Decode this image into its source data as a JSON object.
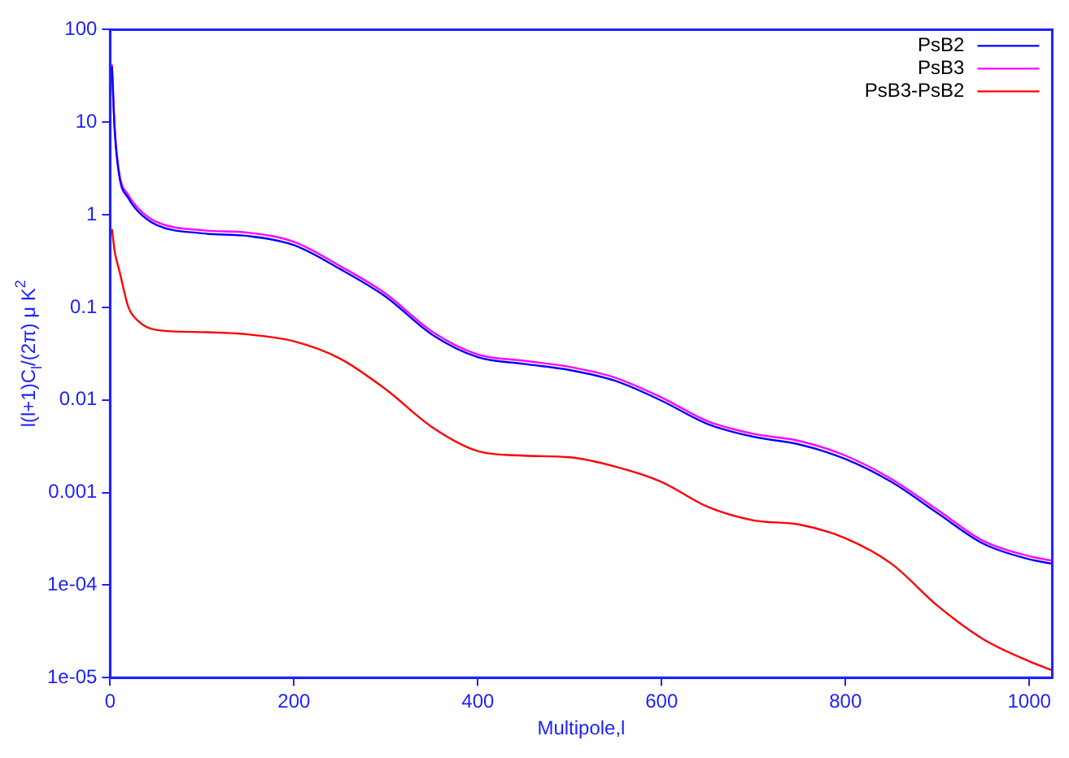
{
  "chart_data": {
    "type": "line",
    "xlabel": "Multipole,l",
    "ylabel": "l(l+1)C$_{l}$/(2π) μ K$^{2}$",
    "x": [
      2,
      5,
      10,
      20,
      30,
      50,
      100,
      150,
      200,
      250,
      300,
      350,
      400,
      450,
      500,
      550,
      600,
      650,
      700,
      750,
      800,
      850,
      900,
      950,
      1000,
      1025
    ],
    "series": [
      {
        "name": "PsB2",
        "color": "#0000ff",
        "values": [
          40,
          8,
          2.6,
          1.5,
          1.1,
          0.78,
          0.63,
          0.59,
          0.47,
          0.26,
          0.13,
          0.051,
          0.029,
          0.0245,
          0.021,
          0.016,
          0.0098,
          0.0055,
          0.004,
          0.0033,
          0.0023,
          0.0013,
          0.0006,
          0.00028,
          0.00019,
          0.00017
        ]
      },
      {
        "name": "PsB3",
        "color": "#ff00ff",
        "values": [
          42,
          8.6,
          2.8,
          1.62,
          1.19,
          0.84,
          0.68,
          0.64,
          0.51,
          0.28,
          0.14,
          0.055,
          0.031,
          0.0265,
          0.0227,
          0.0173,
          0.0106,
          0.0059,
          0.0043,
          0.0036,
          0.0025,
          0.0014,
          0.00065,
          0.0003,
          0.000205,
          0.000183
        ]
      },
      {
        "name": "PsB3-PsB2",
        "color": "#ff0000",
        "values": [
          0.7,
          0.4,
          0.25,
          0.1,
          0.072,
          0.057,
          0.054,
          0.051,
          0.043,
          0.028,
          0.013,
          0.0051,
          0.0028,
          0.0025,
          0.0024,
          0.0019,
          0.0013,
          0.0007,
          0.0005,
          0.00045,
          0.00032,
          0.00017,
          6e-05,
          2.6e-05,
          1.5e-05,
          1.2e-05
        ]
      }
    ],
    "log": "y",
    "xlim": [
      0,
      1025
    ],
    "xticks": [
      0,
      200,
      400,
      600,
      800,
      1000
    ],
    "ylim": [
      1e-05,
      100
    ],
    "yticks": [
      100,
      10,
      1,
      0.1,
      0.01,
      0.001,
      {
        "value": 0.0001,
        "label": "1e-04"
      },
      {
        "value": 1e-05,
        "label": "1e-05"
      }
    ],
    "legend": "top right",
    "grid": false,
    "marker": "none",
    "line_style": "solid"
  }
}
